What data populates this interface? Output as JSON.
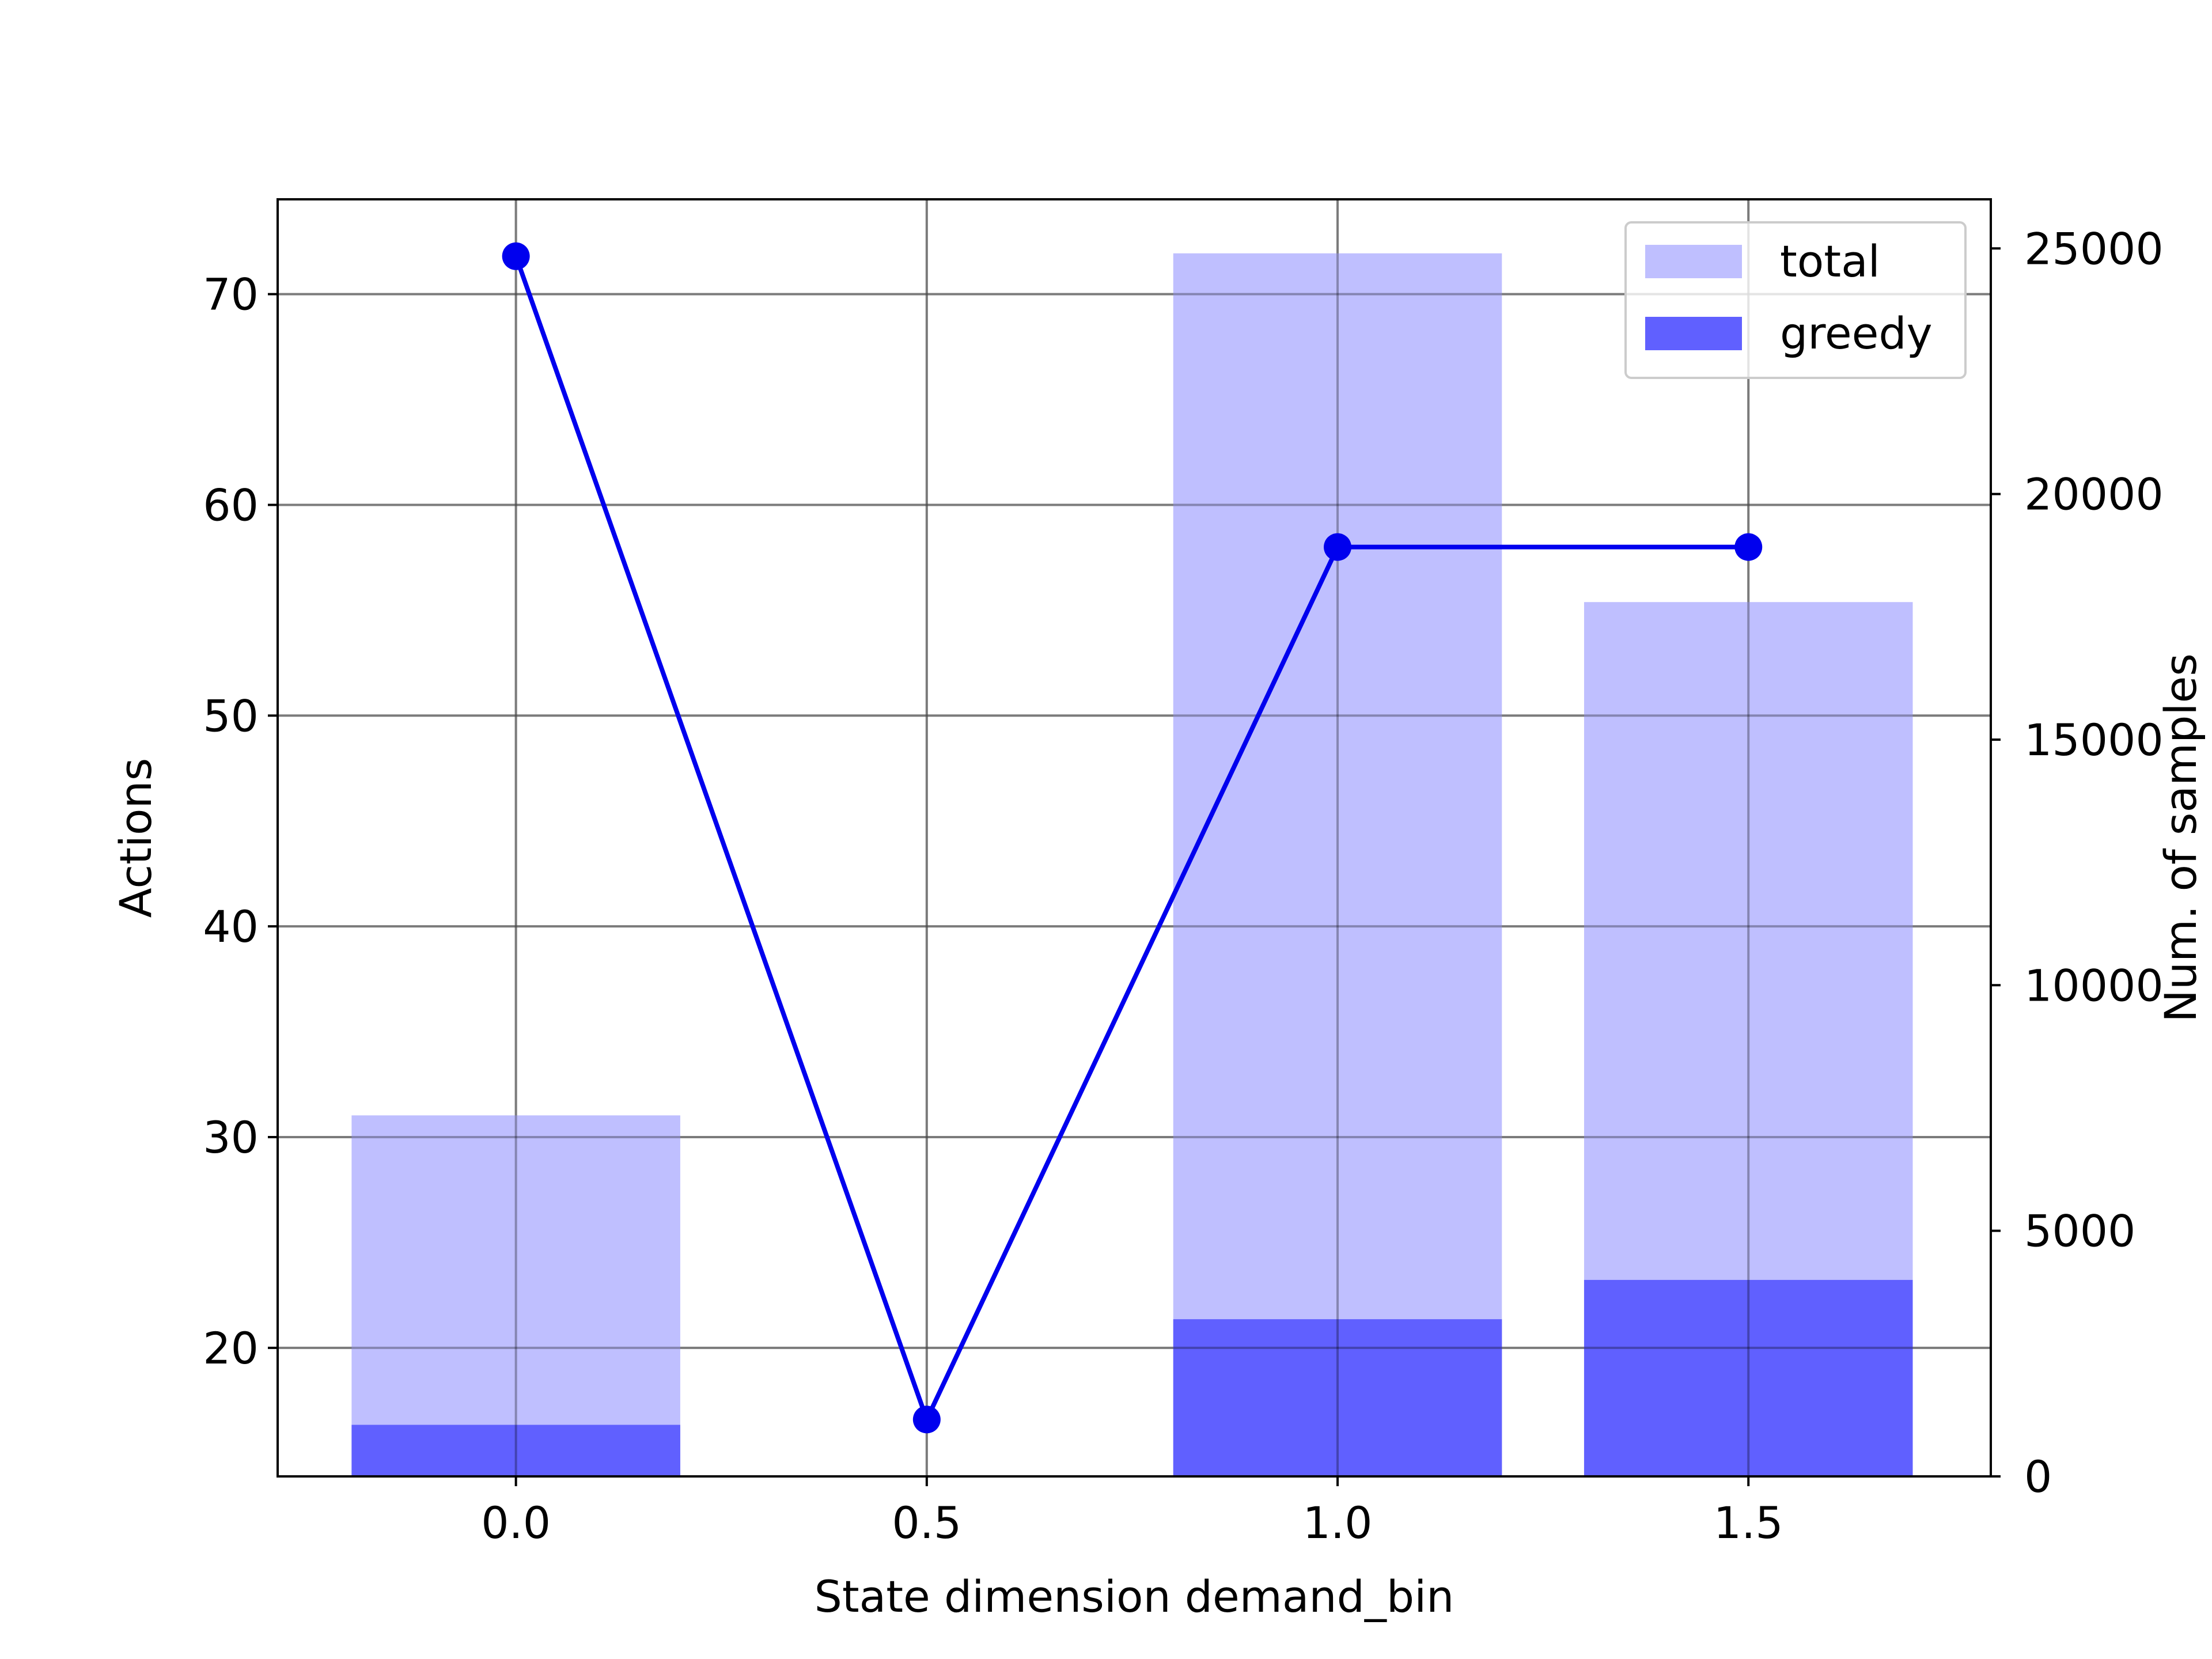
{
  "chart_data": {
    "type": "bar",
    "x_categories": [
      0.0,
      0.5,
      1.0,
      1.5
    ],
    "xlabel": "State dimension demand_bin",
    "x_ticks": [
      "0.0",
      "0.5",
      "1.0",
      "1.5"
    ],
    "left_axis": {
      "label": "Actions",
      "ylim": [
        13.9,
        74.5
      ],
      "ticks": [
        20,
        30,
        40,
        50,
        60,
        70
      ]
    },
    "right_axis": {
      "label": "Num. of samples",
      "ylim": [
        0,
        26000
      ],
      "ticks": [
        0,
        5000,
        10000,
        15000,
        20000,
        25000
      ]
    },
    "series": [
      {
        "name": "total",
        "kind": "bar",
        "axis": "right",
        "color": "#bfbfff",
        "x": [
          0.0,
          1.0,
          1.5
        ],
        "values": [
          7350,
          24900,
          17800
        ]
      },
      {
        "name": "greedy",
        "kind": "bar",
        "axis": "right",
        "color": "#6060ff",
        "x": [
          0.0,
          1.0,
          1.5
        ],
        "values": [
          1050,
          3200,
          4000
        ]
      },
      {
        "kind": "line",
        "axis": "left",
        "color": "#0000ee",
        "x": [
          0.0,
          0.5,
          1.0,
          1.5
        ],
        "values": [
          71.8,
          16.6,
          58.0,
          58.0
        ]
      }
    ],
    "legend": {
      "placement": "top-right",
      "entries": [
        "total",
        "greedy"
      ]
    },
    "grid": true
  }
}
